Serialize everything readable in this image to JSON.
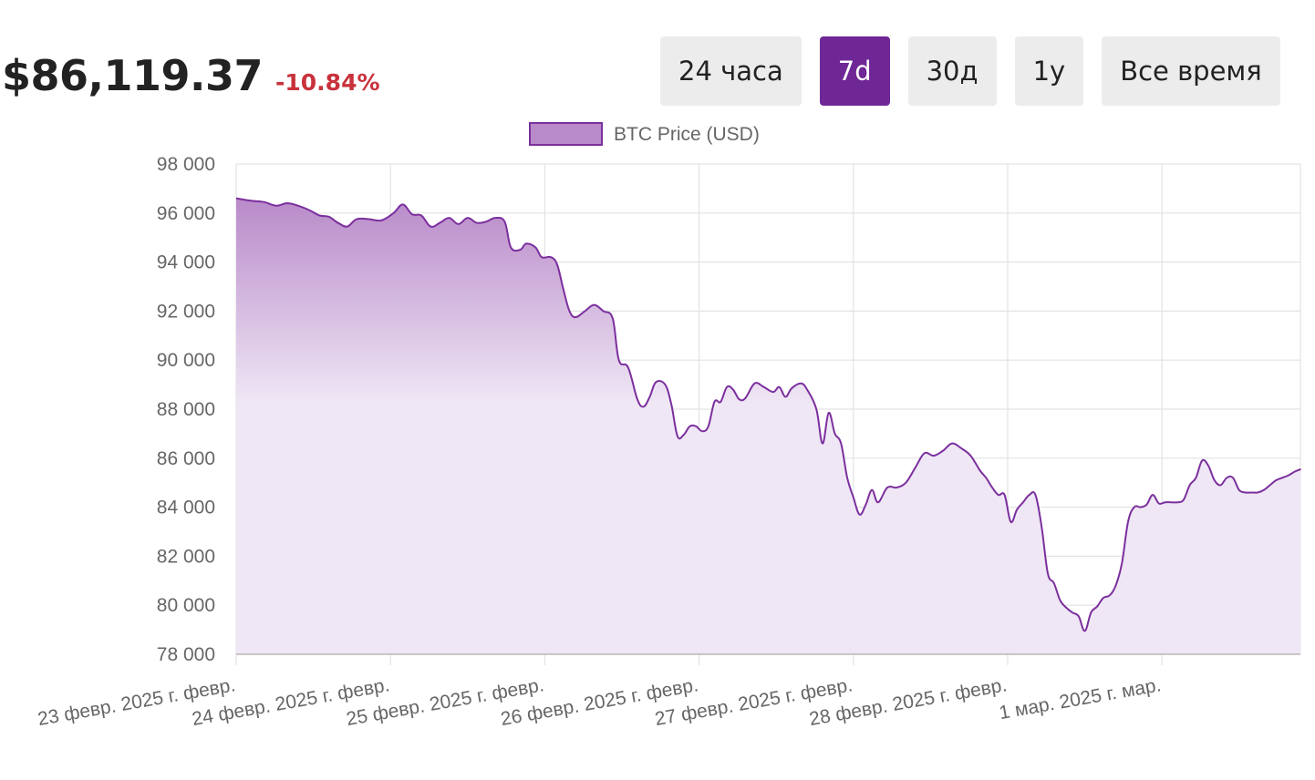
{
  "header": {
    "price": "$86,119.37",
    "change": "-10.84%",
    "change_color": "#c8323c"
  },
  "ranges": [
    {
      "label": "24 часа",
      "active": false
    },
    {
      "label": "7d",
      "active": true
    },
    {
      "label": "30д",
      "active": false
    },
    {
      "label": "1y",
      "active": false
    },
    {
      "label": "Все время",
      "active": false
    }
  ],
  "colors": {
    "accent": "#6f2796",
    "line": "#7b2f9e",
    "fill_top": "#b98ac9",
    "fill_bottom": "#efe7f5",
    "grid": "#e3e3e3"
  },
  "chart_data": {
    "type": "area",
    "legend": "BTC Price (USD)",
    "legend_position": "top-center",
    "grid": true,
    "ylim": [
      78000,
      98000
    ],
    "y_ticks": [
      98000,
      96000,
      94000,
      92000,
      90000,
      88000,
      86000,
      84000,
      82000,
      80000,
      78000
    ],
    "y_tick_labels": [
      "98 000",
      "96 000",
      "94 000",
      "92 000",
      "90 000",
      "88 000",
      "86 000",
      "84 000",
      "82 000",
      "80 000",
      "78 000"
    ],
    "x_ticks": [
      "23 февр. 2025 г. февр.",
      "24 февр. 2025 г. февр.",
      "25 февр. 2025 г. февр.",
      "26 февр. 2025 г. февр.",
      "27 февр. 2025 г. февр.",
      "28 февр. 2025 г. февр.",
      "1 мар. 2025 г. мар."
    ],
    "x_unit": "days",
    "x_max": 6.9,
    "series": [
      {
        "name": "BTC Price (USD)",
        "points": [
          [
            0.0,
            96600
          ],
          [
            0.1,
            96500
          ],
          [
            0.18,
            96450
          ],
          [
            0.26,
            96300
          ],
          [
            0.33,
            96400
          ],
          [
            0.4,
            96300
          ],
          [
            0.48,
            96100
          ],
          [
            0.54,
            95900
          ],
          [
            0.6,
            95850
          ],
          [
            0.66,
            95600
          ],
          [
            0.72,
            95450
          ],
          [
            0.78,
            95750
          ],
          [
            0.86,
            95750
          ],
          [
            0.94,
            95700
          ],
          [
            1.02,
            96000
          ],
          [
            1.08,
            96350
          ],
          [
            1.14,
            95950
          ],
          [
            1.2,
            95900
          ],
          [
            1.26,
            95450
          ],
          [
            1.32,
            95600
          ],
          [
            1.38,
            95800
          ],
          [
            1.44,
            95550
          ],
          [
            1.5,
            95800
          ],
          [
            1.56,
            95600
          ],
          [
            1.62,
            95650
          ],
          [
            1.68,
            95800
          ],
          [
            1.74,
            95650
          ],
          [
            1.78,
            94600
          ],
          [
            1.84,
            94500
          ],
          [
            1.88,
            94750
          ],
          [
            1.94,
            94600
          ],
          [
            1.98,
            94200
          ],
          [
            2.04,
            94200
          ],
          [
            2.08,
            93900
          ],
          [
            2.12,
            92900
          ],
          [
            2.16,
            92000
          ],
          [
            2.2,
            91750
          ],
          [
            2.26,
            92000
          ],
          [
            2.32,
            92250
          ],
          [
            2.38,
            92000
          ],
          [
            2.44,
            91700
          ],
          [
            2.48,
            90000
          ],
          [
            2.54,
            89700
          ],
          [
            2.6,
            88400
          ],
          [
            2.64,
            88100
          ],
          [
            2.68,
            88500
          ],
          [
            2.72,
            89100
          ],
          [
            2.78,
            89000
          ],
          [
            2.82,
            88200
          ],
          [
            2.86,
            86900
          ],
          [
            2.9,
            86950
          ],
          [
            2.94,
            87300
          ],
          [
            2.98,
            87300
          ],
          [
            3.02,
            87100
          ],
          [
            3.06,
            87300
          ],
          [
            3.1,
            88300
          ],
          [
            3.14,
            88300
          ],
          [
            3.18,
            88900
          ],
          [
            3.22,
            88800
          ],
          [
            3.26,
            88400
          ],
          [
            3.3,
            88450
          ],
          [
            3.36,
            89050
          ],
          [
            3.42,
            88900
          ],
          [
            3.48,
            88700
          ],
          [
            3.52,
            88900
          ],
          [
            3.56,
            88500
          ],
          [
            3.6,
            88850
          ],
          [
            3.66,
            89050
          ],
          [
            3.7,
            88800
          ],
          [
            3.76,
            88000
          ],
          [
            3.8,
            86600
          ],
          [
            3.84,
            87850
          ],
          [
            3.88,
            87000
          ],
          [
            3.92,
            86600
          ],
          [
            3.96,
            85200
          ],
          [
            4.0,
            84400
          ],
          [
            4.04,
            83700
          ],
          [
            4.08,
            84100
          ],
          [
            4.12,
            84700
          ],
          [
            4.16,
            84200
          ],
          [
            4.22,
            84800
          ],
          [
            4.28,
            84800
          ],
          [
            4.34,
            85000
          ],
          [
            4.4,
            85600
          ],
          [
            4.46,
            86200
          ],
          [
            4.52,
            86100
          ],
          [
            4.58,
            86300
          ],
          [
            4.64,
            86600
          ],
          [
            4.7,
            86400
          ],
          [
            4.76,
            86100
          ],
          [
            4.82,
            85500
          ],
          [
            4.86,
            85200
          ],
          [
            4.9,
            84800
          ],
          [
            4.94,
            84500
          ],
          [
            4.98,
            84500
          ],
          [
            5.02,
            83400
          ],
          [
            5.06,
            83900
          ],
          [
            5.1,
            84200
          ],
          [
            5.14,
            84500
          ],
          [
            5.18,
            84500
          ],
          [
            5.22,
            83200
          ],
          [
            5.26,
            81300
          ],
          [
            5.3,
            80900
          ],
          [
            5.34,
            80200
          ],
          [
            5.38,
            79900
          ],
          [
            5.42,
            79700
          ],
          [
            5.46,
            79550
          ],
          [
            5.5,
            78950
          ],
          [
            5.54,
            79700
          ],
          [
            5.58,
            79950
          ],
          [
            5.62,
            80300
          ],
          [
            5.66,
            80400
          ],
          [
            5.7,
            80800
          ],
          [
            5.74,
            81700
          ],
          [
            5.78,
            83400
          ],
          [
            5.82,
            84000
          ],
          [
            5.86,
            84000
          ],
          [
            5.9,
            84100
          ],
          [
            5.94,
            84500
          ],
          [
            5.98,
            84150
          ],
          [
            6.02,
            84200
          ],
          [
            6.06,
            84200
          ],
          [
            6.1,
            84200
          ],
          [
            6.14,
            84300
          ],
          [
            6.18,
            84900
          ],
          [
            6.22,
            85200
          ],
          [
            6.26,
            85900
          ],
          [
            6.3,
            85700
          ],
          [
            6.34,
            85100
          ],
          [
            6.38,
            84900
          ],
          [
            6.42,
            85200
          ],
          [
            6.46,
            85200
          ],
          [
            6.5,
            84700
          ],
          [
            6.54,
            84600
          ],
          [
            6.58,
            84600
          ],
          [
            6.62,
            84600
          ],
          [
            6.66,
            84700
          ],
          [
            6.7,
            84900
          ],
          [
            6.74,
            85100
          ],
          [
            6.78,
            85200
          ],
          [
            6.82,
            85300
          ],
          [
            6.86,
            85450
          ],
          [
            6.9,
            85550
          ]
        ]
      }
    ]
  }
}
